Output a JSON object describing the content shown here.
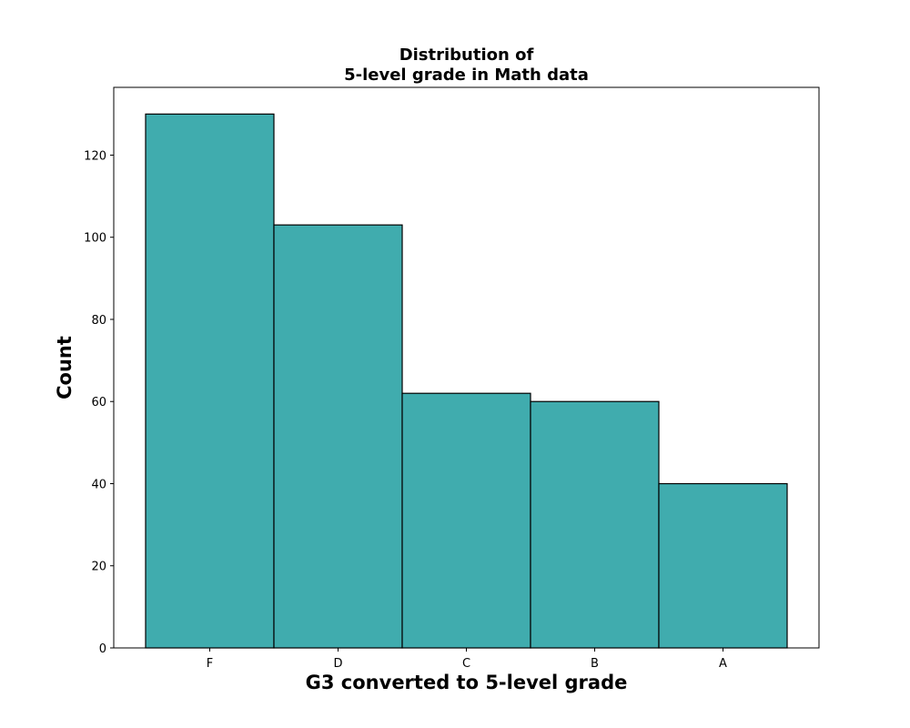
{
  "chart_data": {
    "type": "bar",
    "title_lines": [
      "Distribution of",
      "5-level grade in Math data"
    ],
    "xlabel": "G3 converted to 5-level grade",
    "ylabel": "Count",
    "categories": [
      "F",
      "D",
      "C",
      "B",
      "A"
    ],
    "values": [
      130,
      103,
      62,
      60,
      40
    ],
    "ylim": [
      0,
      136.5
    ],
    "yticks": [
      0,
      20,
      40,
      60,
      80,
      100,
      120
    ],
    "grid": false,
    "legend": "none",
    "bar_color": "#40acae",
    "edge_color": "#000000"
  }
}
